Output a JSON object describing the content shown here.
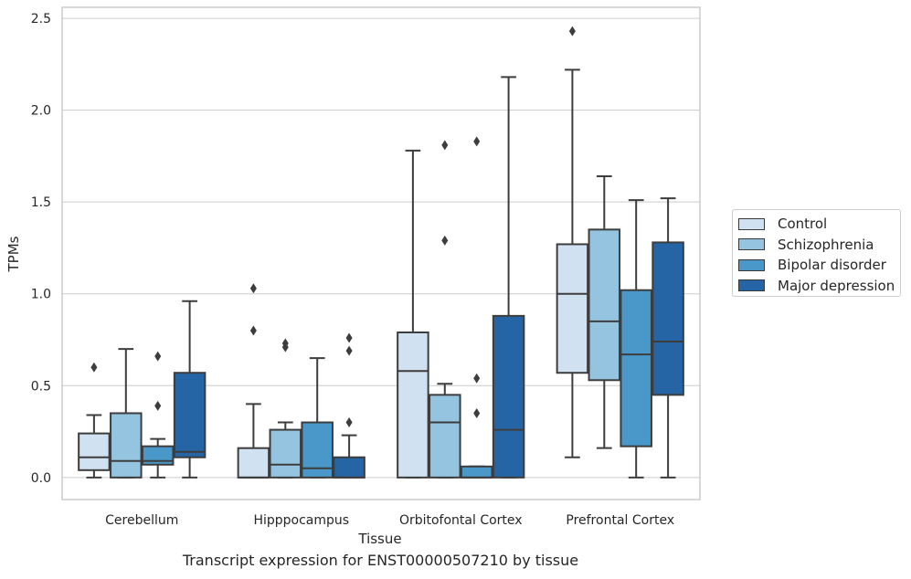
{
  "chart_data": {
    "type": "box",
    "xlabel": "Tissue",
    "ylabel": "TPMs",
    "caption": "Transcript expression for ENST00000507210 by tissue",
    "ylim": [
      -0.12,
      2.56
    ],
    "yticks": [
      0.0,
      0.5,
      1.0,
      1.5,
      2.0,
      2.5
    ],
    "ytick_labels": [
      "0.0",
      "0.5",
      "1.0",
      "1.5",
      "2.0",
      "2.5"
    ],
    "grid": "horizontal",
    "legend_position": "right",
    "categories": [
      "Cerebellum",
      "Hipppocampus",
      "Orbitofontal Cortex",
      "Prefrontal Cortex"
    ],
    "series": [
      {
        "name": "Control",
        "color": "#d0e1f2",
        "boxes": [
          {
            "whislo": 0.0,
            "q1": 0.04,
            "med": 0.11,
            "q3": 0.24,
            "whishi": 0.34,
            "fliers": [
              0.6
            ]
          },
          {
            "whislo": 0.0,
            "q1": 0.0,
            "med": 0.0,
            "q3": 0.16,
            "whishi": 0.4,
            "fliers": [
              0.8,
              1.03
            ]
          },
          {
            "whislo": 0.0,
            "q1": 0.0,
            "med": 0.58,
            "q3": 0.79,
            "whishi": 1.78,
            "fliers": []
          },
          {
            "whislo": 0.11,
            "q1": 0.57,
            "med": 1.0,
            "q3": 1.27,
            "whishi": 2.22,
            "fliers": [
              2.43
            ]
          }
        ]
      },
      {
        "name": "Schizophrenia",
        "color": "#94c4df",
        "boxes": [
          {
            "whislo": 0.0,
            "q1": 0.0,
            "med": 0.09,
            "q3": 0.35,
            "whishi": 0.7,
            "fliers": []
          },
          {
            "whislo": 0.0,
            "q1": 0.0,
            "med": 0.07,
            "q3": 0.26,
            "whishi": 0.3,
            "fliers": [
              0.71,
              0.73
            ]
          },
          {
            "whislo": 0.0,
            "q1": 0.0,
            "med": 0.3,
            "q3": 0.45,
            "whishi": 0.51,
            "fliers": [
              1.29,
              1.81
            ]
          },
          {
            "whislo": 0.16,
            "q1": 0.53,
            "med": 0.85,
            "q3": 1.35,
            "whishi": 1.64,
            "fliers": []
          }
        ]
      },
      {
        "name": "Bipolar disorder",
        "color": "#4a98c9",
        "boxes": [
          {
            "whislo": 0.0,
            "q1": 0.07,
            "med": 0.09,
            "q3": 0.17,
            "whishi": 0.21,
            "fliers": [
              0.39,
              0.66
            ]
          },
          {
            "whislo": 0.0,
            "q1": 0.0,
            "med": 0.05,
            "q3": 0.3,
            "whishi": 0.65,
            "fliers": []
          },
          {
            "whislo": 0.0,
            "q1": 0.0,
            "med": 0.0,
            "q3": 0.06,
            "whishi": 0.06,
            "fliers": [
              0.35,
              0.54,
              1.83
            ]
          },
          {
            "whislo": 0.0,
            "q1": 0.17,
            "med": 0.67,
            "q3": 1.02,
            "whishi": 1.51,
            "fliers": []
          }
        ]
      },
      {
        "name": "Major depression",
        "color": "#2565a6",
        "boxes": [
          {
            "whislo": 0.0,
            "q1": 0.11,
            "med": 0.14,
            "q3": 0.57,
            "whishi": 0.96,
            "fliers": []
          },
          {
            "whislo": 0.0,
            "q1": 0.0,
            "med": 0.0,
            "q3": 0.11,
            "whishi": 0.23,
            "fliers": [
              0.3,
              0.69,
              0.76
            ]
          },
          {
            "whislo": 0.0,
            "q1": 0.0,
            "med": 0.26,
            "q3": 0.88,
            "whishi": 2.18,
            "fliers": []
          },
          {
            "whislo": 0.0,
            "q1": 0.45,
            "med": 0.74,
            "q3": 1.28,
            "whishi": 1.52,
            "fliers": []
          }
        ]
      }
    ]
  }
}
